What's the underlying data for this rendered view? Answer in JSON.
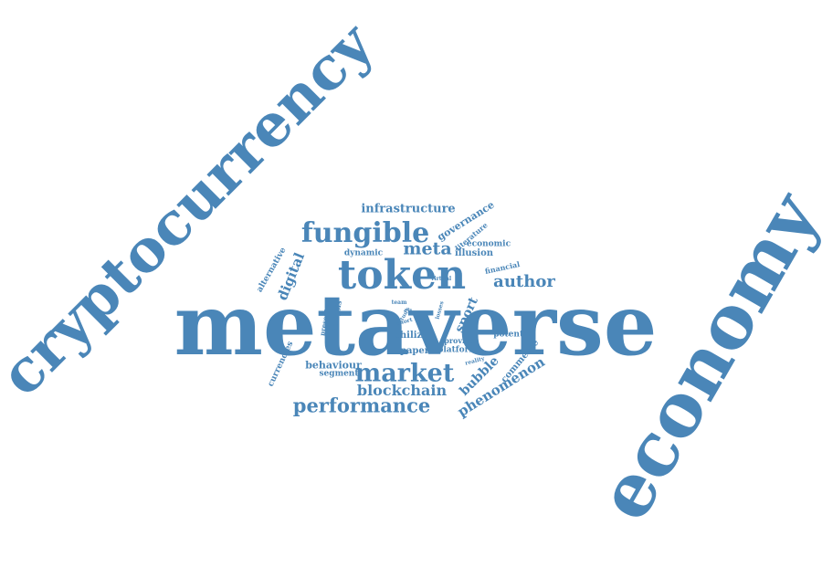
{
  "color": "#4a86b8",
  "words": [
    {
      "text": "metaverse"
    },
    {
      "text": "cryptocurrency"
    },
    {
      "text": "economy"
    },
    {
      "text": "token"
    },
    {
      "text": "market"
    },
    {
      "text": "fungible"
    },
    {
      "text": "performance"
    },
    {
      "text": "blockchain"
    },
    {
      "text": "phenomenon"
    },
    {
      "text": "author"
    },
    {
      "text": "meta"
    },
    {
      "text": "bubble"
    },
    {
      "text": "sport"
    },
    {
      "text": "digital"
    },
    {
      "text": "infrastructure"
    },
    {
      "text": "governance"
    },
    {
      "text": "commerce"
    },
    {
      "text": "behaviour"
    },
    {
      "text": "segment"
    },
    {
      "text": "currencies"
    },
    {
      "text": "chiliz"
    },
    {
      "text": "paper"
    },
    {
      "text": "platform"
    },
    {
      "text": "potential"
    },
    {
      "text": "provide"
    },
    {
      "text": "illusion"
    },
    {
      "text": "economic"
    },
    {
      "text": "literature"
    },
    {
      "text": "dynamic"
    },
    {
      "text": "alternative"
    },
    {
      "text": "financial"
    },
    {
      "text": "virtual"
    },
    {
      "text": "analysis"
    },
    {
      "text": "present"
    },
    {
      "text": "study"
    },
    {
      "text": "team"
    },
    {
      "text": "short"
    },
    {
      "text": "losses"
    },
    {
      "text": "reality"
    },
    {
      "text": "els"
    }
  ]
}
